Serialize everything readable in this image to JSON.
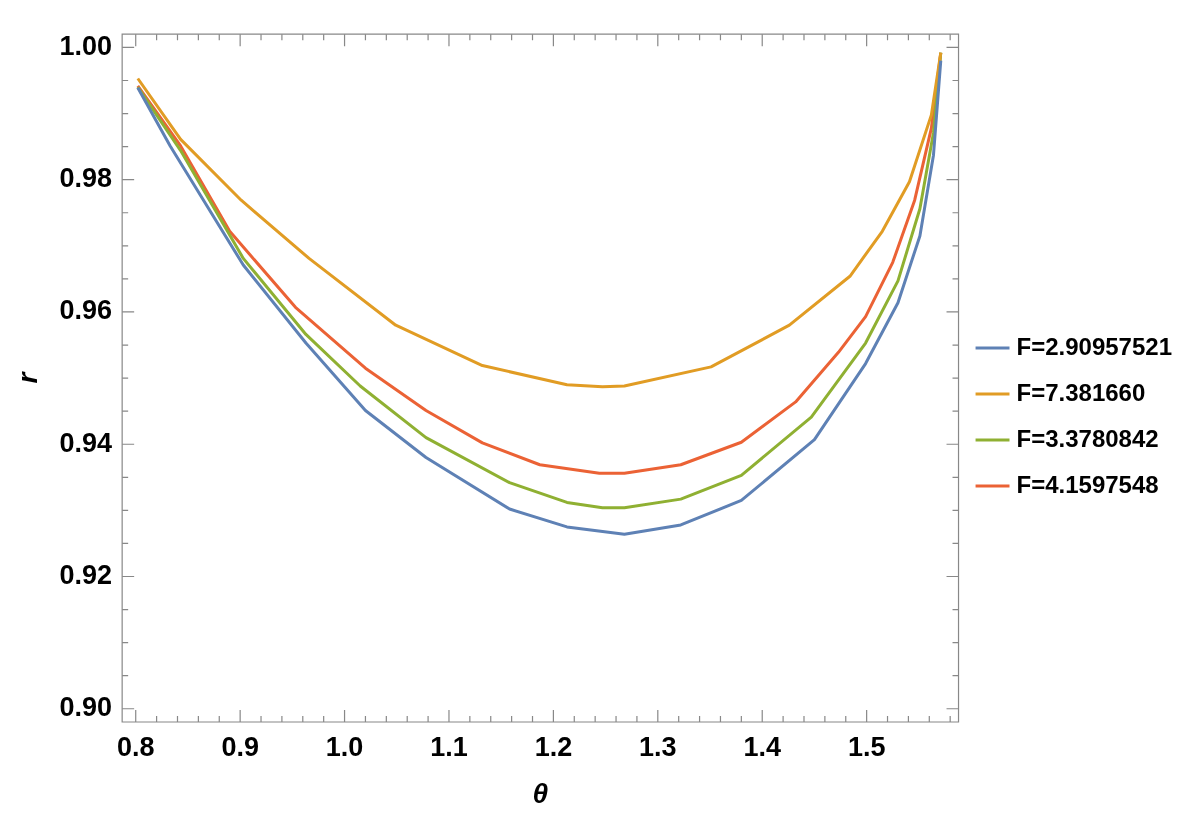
{
  "chart_data": {
    "type": "line",
    "xlabel": "θ",
    "ylabel": "r",
    "xlim": [
      0.787,
      1.588
    ],
    "ylim": [
      0.898,
      1.002
    ],
    "xticks": [
      {
        "value": 0.8,
        "label": "0.8"
      },
      {
        "value": 0.82,
        "label": null
      },
      {
        "value": 0.84,
        "label": null
      },
      {
        "value": 0.86,
        "label": null
      },
      {
        "value": 0.88,
        "label": null
      },
      {
        "value": 0.9,
        "label": "0.9"
      },
      {
        "value": 0.92,
        "label": null
      },
      {
        "value": 0.94,
        "label": null
      },
      {
        "value": 0.96,
        "label": null
      },
      {
        "value": 0.98,
        "label": null
      },
      {
        "value": 1.0,
        "label": "1.0"
      },
      {
        "value": 1.02,
        "label": null
      },
      {
        "value": 1.04,
        "label": null
      },
      {
        "value": 1.06,
        "label": null
      },
      {
        "value": 1.08,
        "label": null
      },
      {
        "value": 1.1,
        "label": "1.1"
      },
      {
        "value": 1.12,
        "label": null
      },
      {
        "value": 1.14,
        "label": null
      },
      {
        "value": 1.16,
        "label": null
      },
      {
        "value": 1.18,
        "label": null
      },
      {
        "value": 1.2,
        "label": "1.2"
      },
      {
        "value": 1.22,
        "label": null
      },
      {
        "value": 1.24,
        "label": null
      },
      {
        "value": 1.26,
        "label": null
      },
      {
        "value": 1.28,
        "label": null
      },
      {
        "value": 1.3,
        "label": "1.3"
      },
      {
        "value": 1.32,
        "label": null
      },
      {
        "value": 1.34,
        "label": null
      },
      {
        "value": 1.36,
        "label": null
      },
      {
        "value": 1.38,
        "label": null
      },
      {
        "value": 1.4,
        "label": "1.4"
      },
      {
        "value": 1.42,
        "label": null
      },
      {
        "value": 1.44,
        "label": null
      },
      {
        "value": 1.46,
        "label": null
      },
      {
        "value": 1.48,
        "label": null
      },
      {
        "value": 1.5,
        "label": "1.5"
      },
      {
        "value": 1.52,
        "label": null
      },
      {
        "value": 1.54,
        "label": null
      },
      {
        "value": 1.56,
        "label": null
      },
      {
        "value": 1.58,
        "label": null
      }
    ],
    "yticks": [
      {
        "value": 0.9,
        "label": "0.90"
      },
      {
        "value": 0.905,
        "label": null
      },
      {
        "value": 0.91,
        "label": null
      },
      {
        "value": 0.915,
        "label": null
      },
      {
        "value": 0.92,
        "label": "0.92"
      },
      {
        "value": 0.925,
        "label": null
      },
      {
        "value": 0.93,
        "label": null
      },
      {
        "value": 0.935,
        "label": null
      },
      {
        "value": 0.94,
        "label": "0.94"
      },
      {
        "value": 0.945,
        "label": null
      },
      {
        "value": 0.95,
        "label": null
      },
      {
        "value": 0.955,
        "label": null
      },
      {
        "value": 0.96,
        "label": "0.96"
      },
      {
        "value": 0.965,
        "label": null
      },
      {
        "value": 0.97,
        "label": null
      },
      {
        "value": 0.975,
        "label": null
      },
      {
        "value": 0.98,
        "label": "0.98"
      },
      {
        "value": 0.985,
        "label": null
      },
      {
        "value": 0.99,
        "label": null
      },
      {
        "value": 0.995,
        "label": null
      },
      {
        "value": 1.0,
        "label": "1.00"
      }
    ],
    "grid": false,
    "legend": "right",
    "marker": "none",
    "line_style": "solid",
    "series": [
      {
        "name": "F=2.90957521",
        "color": "#5e81b5",
        "x": [
          0.802,
          0.833,
          0.903,
          0.963,
          1.02,
          1.078,
          1.158,
          1.213,
          1.268,
          1.322,
          1.38,
          1.45,
          1.499,
          1.53,
          1.551,
          1.564,
          1.571
        ],
        "values": [
          0.9939,
          0.9851,
          0.9671,
          0.9553,
          0.9451,
          0.938,
          0.9302,
          0.9275,
          0.9264,
          0.9278,
          0.9315,
          0.9407,
          0.9522,
          0.9614,
          0.9715,
          0.9837,
          0.998
        ]
      },
      {
        "name": "F=7.381660",
        "color": "#e19c24",
        "x": [
          0.802,
          0.843,
          0.901,
          0.966,
          1.049,
          1.132,
          1.213,
          1.247,
          1.268,
          1.351,
          1.426,
          1.484,
          1.515,
          1.541,
          1.562,
          1.571
        ],
        "values": [
          0.9953,
          0.9861,
          0.9769,
          0.9681,
          0.958,
          0.9519,
          0.949,
          0.9487,
          0.9488,
          0.9517,
          0.958,
          0.9654,
          0.9722,
          0.9797,
          0.9898,
          0.9992
        ]
      },
      {
        "name": "F=3.3780842",
        "color": "#8fb032",
        "x": [
          0.802,
          0.843,
          0.903,
          0.963,
          1.015,
          1.078,
          1.158,
          1.213,
          1.247,
          1.268,
          1.322,
          1.38,
          1.447,
          1.499,
          1.53,
          1.551,
          1.564,
          1.571
        ],
        "values": [
          0.994,
          0.9844,
          0.9681,
          0.9566,
          0.9488,
          0.941,
          0.9342,
          0.9312,
          0.9304,
          0.9304,
          0.9317,
          0.9353,
          0.9441,
          0.9553,
          0.9647,
          0.9756,
          0.9871,
          0.9992
        ]
      },
      {
        "name": "F=4.1597548",
        "color": "#eb6235",
        "x": [
          0.802,
          0.843,
          0.89,
          0.953,
          1.02,
          1.078,
          1.132,
          1.187,
          1.244,
          1.268,
          1.322,
          1.38,
          1.432,
          1.473,
          1.499,
          1.525,
          1.546,
          1.562,
          1.571
        ],
        "values": [
          0.9942,
          0.9851,
          0.9722,
          0.9607,
          0.9515,
          0.9451,
          0.9402,
          0.9369,
          0.9356,
          0.9356,
          0.9369,
          0.9403,
          0.9464,
          0.9539,
          0.9593,
          0.9675,
          0.9769,
          0.9878,
          0.9992
        ]
      }
    ]
  }
}
